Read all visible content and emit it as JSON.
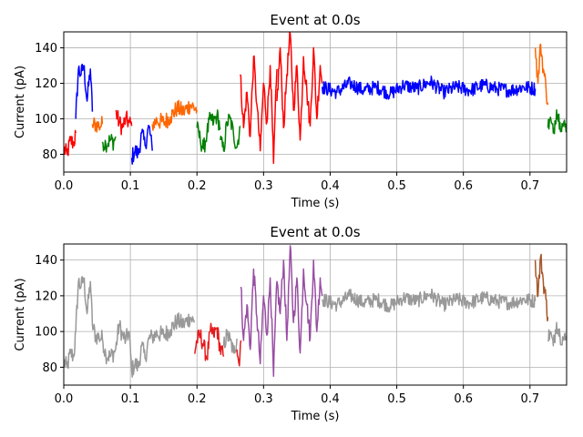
{
  "chart_data": [
    {
      "type": "line",
      "title": "Event at 0.0s",
      "xlabel": "Time (s)",
      "ylabel": "Current (pA)",
      "xlim": [
        0.0,
        0.755
      ],
      "ylim": [
        70,
        149
      ],
      "xticks": [
        0.0,
        0.1,
        0.2,
        0.3,
        0.4,
        0.5,
        0.6,
        0.7
      ],
      "xtick_labels": [
        "0.0",
        "0.1",
        "0.2",
        "0.3",
        "0.4",
        "0.5",
        "0.6",
        "0.7"
      ],
      "yticks": [
        80,
        100,
        120,
        140
      ],
      "ytick_labels": [
        "80",
        "100",
        "120",
        "140"
      ],
      "grid": true,
      "legend": "none",
      "series": [
        {
          "color": "#ff0000",
          "x": [
            0.0,
            0.005,
            0.01,
            0.015,
            0.018
          ],
          "y": [
            83,
            80,
            88,
            86,
            92
          ]
        },
        {
          "color": "#0000ff",
          "x": [
            0.018,
            0.022,
            0.026,
            0.03,
            0.035,
            0.04,
            0.043
          ],
          "y": [
            100,
            128,
            125,
            130,
            110,
            128,
            104
          ]
        },
        {
          "color": "#ff6600",
          "x": [
            0.043,
            0.048,
            0.053,
            0.058
          ],
          "y": [
            97,
            97,
            96,
            97
          ]
        },
        {
          "color": "#008000",
          "x": [
            0.058,
            0.063,
            0.07,
            0.075,
            0.078
          ],
          "y": [
            87,
            86,
            88,
            87,
            90
          ]
        },
        {
          "color": "#ff0000",
          "x": [
            0.078,
            0.083,
            0.088,
            0.093,
            0.098,
            0.102
          ],
          "y": [
            104,
            98,
            95,
            100,
            98,
            96
          ]
        },
        {
          "color": "#0000ff",
          "x": [
            0.102,
            0.107,
            0.112,
            0.117,
            0.122,
            0.128,
            0.133
          ],
          "y": [
            78,
            82,
            80,
            92,
            85,
            96,
            82
          ]
        },
        {
          "color": "#ff6600",
          "x": [
            0.133,
            0.14,
            0.15,
            0.16,
            0.17,
            0.18,
            0.19,
            0.2
          ],
          "y": [
            97,
            99,
            98,
            101,
            106,
            104,
            108,
            105
          ]
        },
        {
          "color": "#008000",
          "x": [
            0.2,
            0.205,
            0.21,
            0.215,
            0.22,
            0.225,
            0.23,
            0.235
          ],
          "y": [
            95,
            88,
            83,
            92,
            100,
            98,
            102,
            95
          ]
        },
        {
          "color": "#008000",
          "x": [
            0.235,
            0.24,
            0.245,
            0.25,
            0.255,
            0.26,
            0.265
          ],
          "y": [
            88,
            82,
            98,
            100,
            91,
            84,
            96
          ]
        },
        {
          "color": "#ff0000",
          "x": [
            0.265,
            0.27,
            0.275,
            0.28,
            0.285,
            0.29,
            0.295,
            0.3,
            0.305,
            0.31,
            0.315,
            0.32
          ],
          "y": [
            125,
            95,
            115,
            90,
            135,
            108,
            82,
            120,
            98,
            130,
            75,
            128
          ]
        },
        {
          "color": "#ff0000",
          "x": [
            0.32,
            0.325,
            0.33,
            0.335,
            0.34,
            0.345,
            0.35,
            0.355,
            0.36,
            0.365,
            0.37,
            0.375,
            0.38,
            0.385,
            0.388
          ],
          "y": [
            110,
            140,
            95,
            125,
            148,
            105,
            130,
            88,
            135,
            115,
            96,
            140,
            100,
            130,
            120
          ]
        },
        {
          "color": "#0000ff",
          "x": [
            0.388,
            0.41,
            0.43,
            0.45,
            0.47,
            0.49,
            0.51,
            0.53,
            0.55,
            0.57,
            0.59,
            0.61,
            0.63,
            0.65,
            0.67,
            0.69,
            0.708
          ],
          "y": [
            118,
            115,
            120,
            116,
            118,
            114,
            119,
            117,
            121,
            115,
            118,
            116,
            119,
            117,
            116,
            118,
            117
          ]
        },
        {
          "color": "#ff6600",
          "x": [
            0.708,
            0.712,
            0.716,
            0.72,
            0.724,
            0.727
          ],
          "y": [
            140,
            120,
            142,
            128,
            118,
            108
          ]
        },
        {
          "color": "#008000",
          "x": [
            0.727,
            0.73,
            0.735,
            0.74,
            0.745,
            0.75,
            0.755
          ],
          "y": [
            95,
            100,
            92,
            105,
            98,
            96,
            95
          ]
        }
      ]
    },
    {
      "type": "line",
      "title": "Event at 0.0s",
      "xlabel": "Time (s)",
      "ylabel": "Current (pA)",
      "xlim": [
        0.0,
        0.755
      ],
      "ylim": [
        70,
        149
      ],
      "xticks": [
        0.0,
        0.1,
        0.2,
        0.3,
        0.4,
        0.5,
        0.6,
        0.7
      ],
      "xtick_labels": [
        "0.0",
        "0.1",
        "0.2",
        "0.3",
        "0.4",
        "0.5",
        "0.6",
        "0.7"
      ],
      "yticks": [
        80,
        100,
        120,
        140
      ],
      "ytick_labels": [
        "80",
        "100",
        "120",
        "140"
      ],
      "grid": true,
      "legend": "none",
      "series": [
        {
          "color": "#999999",
          "x": [
            0.0,
            0.005,
            0.01,
            0.015,
            0.018,
            0.022,
            0.026,
            0.03,
            0.035,
            0.04,
            0.043,
            0.048,
            0.053,
            0.058,
            0.063,
            0.07,
            0.075,
            0.078,
            0.083,
            0.088,
            0.093,
            0.098,
            0.102,
            0.107,
            0.112,
            0.117,
            0.122,
            0.128,
            0.133,
            0.14,
            0.15,
            0.16,
            0.17,
            0.18,
            0.19,
            0.196
          ],
          "y": [
            83,
            80,
            88,
            86,
            100,
            128,
            125,
            130,
            110,
            128,
            104,
            97,
            97,
            96,
            87,
            86,
            88,
            90,
            104,
            98,
            95,
            100,
            78,
            82,
            80,
            92,
            85,
            96,
            97,
            99,
            98,
            101,
            106,
            104,
            108,
            105
          ]
        },
        {
          "color": "#e41a1c",
          "x": [
            0.196,
            0.2,
            0.205,
            0.21,
            0.215,
            0.22,
            0.225,
            0.23,
            0.235,
            0.24
          ],
          "y": [
            88,
            95,
            98,
            92,
            85,
            100,
            98,
            102,
            90,
            86
          ]
        },
        {
          "color": "#999999",
          "x": [
            0.24,
            0.245,
            0.25,
            0.255,
            0.26
          ],
          "y": [
            92,
            98,
            95,
            88,
            96
          ]
        },
        {
          "color": "#e41a1c",
          "x": [
            0.26,
            0.263,
            0.266
          ],
          "y": [
            90,
            82,
            95
          ]
        },
        {
          "color": "#984ea3",
          "x": [
            0.266,
            0.27,
            0.275,
            0.28,
            0.285,
            0.29,
            0.295,
            0.3,
            0.305,
            0.31,
            0.315,
            0.32,
            0.325,
            0.33,
            0.335,
            0.34,
            0.345,
            0.35,
            0.355,
            0.36,
            0.365,
            0.37,
            0.375,
            0.38,
            0.385,
            0.388
          ],
          "y": [
            125,
            95,
            115,
            90,
            135,
            108,
            82,
            120,
            98,
            130,
            75,
            128,
            110,
            140,
            95,
            148,
            105,
            130,
            88,
            135,
            115,
            96,
            140,
            100,
            130,
            120
          ]
        },
        {
          "color": "#999999",
          "x": [
            0.388,
            0.41,
            0.43,
            0.45,
            0.47,
            0.49,
            0.51,
            0.53,
            0.55,
            0.57,
            0.59,
            0.61,
            0.63,
            0.65,
            0.67,
            0.69,
            0.708
          ],
          "y": [
            118,
            115,
            120,
            116,
            118,
            114,
            119,
            117,
            121,
            115,
            118,
            116,
            119,
            117,
            116,
            118,
            117
          ]
        },
        {
          "color": "#a65628",
          "x": [
            0.708,
            0.712,
            0.716,
            0.72,
            0.724,
            0.727
          ],
          "y": [
            140,
            120,
            142,
            128,
            118,
            108
          ]
        },
        {
          "color": "#999999",
          "x": [
            0.727,
            0.73,
            0.735,
            0.74,
            0.745,
            0.75,
            0.755
          ],
          "y": [
            95,
            100,
            92,
            105,
            98,
            96,
            95
          ]
        }
      ]
    }
  ]
}
